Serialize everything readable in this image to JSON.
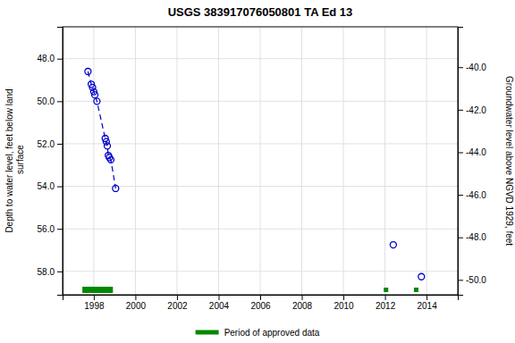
{
  "chart_data": {
    "type": "scatter",
    "title": "USGS 383917076050801 TA Ed  13",
    "y_label": "Depth to water level, feet below land\n surface",
    "y2_label": "Groundwater level above NGVD 1929, feet",
    "xlim": [
      1996.5,
      2015.5
    ],
    "ylim": [
      59.1,
      46.5
    ],
    "y2lim": [
      -50.7,
      -38.1
    ],
    "xticks": [
      1998,
      2000,
      2002,
      2004,
      2006,
      2008,
      2010,
      2012,
      2014
    ],
    "yticks": [
      {
        "value": 48.0,
        "label": "48.0"
      },
      {
        "value": 50.0,
        "label": "50.0"
      },
      {
        "value": 52.0,
        "label": "52.0"
      },
      {
        "value": 54.0,
        "label": "54.0"
      },
      {
        "value": 56.0,
        "label": "56.0"
      },
      {
        "value": 58.0,
        "label": "58.0"
      }
    ],
    "y2ticks": [
      {
        "value": -40.0,
        "label": "-40.0"
      },
      {
        "value": -42.0,
        "label": "-42.0"
      },
      {
        "value": -44.0,
        "label": "-44.0"
      },
      {
        "value": -46.0,
        "label": "-46.0"
      },
      {
        "value": -48.0,
        "label": "-48.0"
      },
      {
        "value": -50.0,
        "label": "-50.0"
      }
    ],
    "grid": true,
    "legend": "bottom",
    "series": [
      {
        "type": "line",
        "line_style": "dashed",
        "marker": "open_circle",
        "color": "#0000cc",
        "x": [
          1997.72,
          1997.88,
          1997.94,
          1998.0,
          1998.05,
          1998.15,
          1998.55,
          1998.6,
          1998.65,
          1998.7,
          1998.75,
          1998.82,
          1999.05
        ],
        "values": [
          48.6,
          49.2,
          49.35,
          49.55,
          49.7,
          50.0,
          51.75,
          51.9,
          52.1,
          52.55,
          52.65,
          52.75,
          54.1
        ]
      },
      {
        "type": "scatter",
        "marker": "open_circle",
        "color": "#0000cc",
        "x": [
          2012.4,
          2013.75
        ],
        "values": [
          56.75,
          58.25
        ]
      }
    ],
    "approved": {
      "name": "Period of approved data",
      "color": "#008800",
      "start": 1997.45,
      "end": 1998.92,
      "dots": [
        2012.05,
        2013.5
      ]
    }
  }
}
